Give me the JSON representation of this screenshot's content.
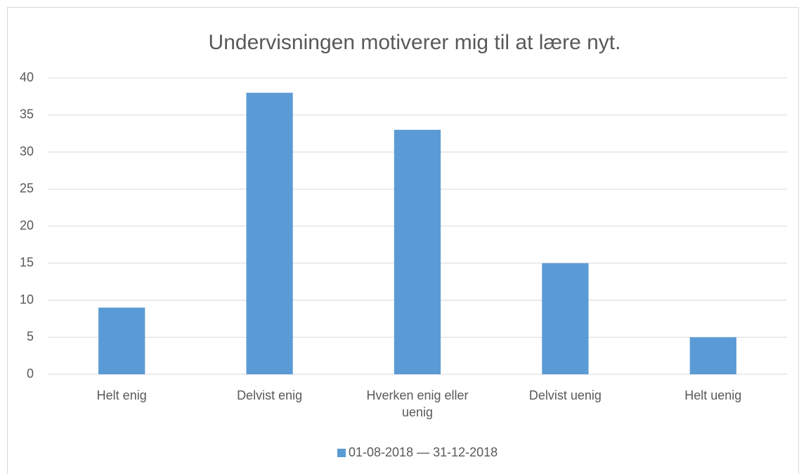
{
  "chart_data": {
    "type": "bar",
    "title": "Undervisningen motiverer mig til at lære nyt.",
    "categories": [
      "Helt enig",
      "Delvist enig",
      "Hverken enig eller uenig",
      "Delvist uenig",
      "Helt uenig"
    ],
    "series": [
      {
        "name": "01-08-2018 — 31-12-2018",
        "color": "#5b9bd5",
        "values": [
          9,
          38,
          33,
          15,
          5
        ]
      }
    ],
    "ylim": [
      0,
      40
    ],
    "yticks": [
      0,
      5,
      10,
      15,
      20,
      25,
      30,
      35,
      40
    ],
    "grid": true,
    "legend": "bottom"
  }
}
